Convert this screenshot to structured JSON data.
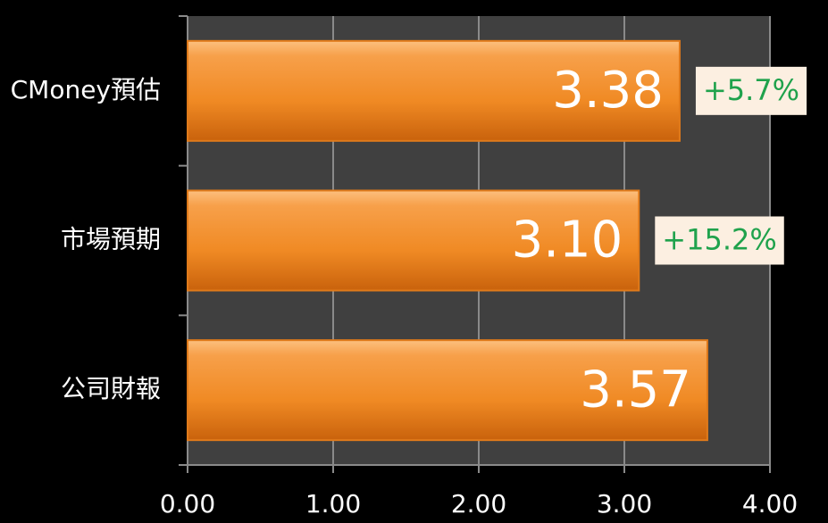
{
  "chart_data": {
    "type": "hbar",
    "categories": [
      "CMoney預估",
      "市場預期",
      "公司財報"
    ],
    "values": [
      3.38,
      3.1,
      3.57
    ],
    "value_labels": [
      "3.38",
      "3.10",
      "3.57"
    ],
    "annotations": [
      "+5.7%",
      "+15.2%",
      null
    ],
    "color": "#f28a26",
    "xlim": [
      0,
      4
    ],
    "xticks": [
      {
        "value": 0,
        "label": "0.00"
      },
      {
        "value": 1,
        "label": "1.00"
      },
      {
        "value": 2,
        "label": "2.00"
      },
      {
        "value": 3,
        "label": "3.00"
      },
      {
        "value": 4,
        "label": "4.00"
      }
    ],
    "grid": true
  }
}
